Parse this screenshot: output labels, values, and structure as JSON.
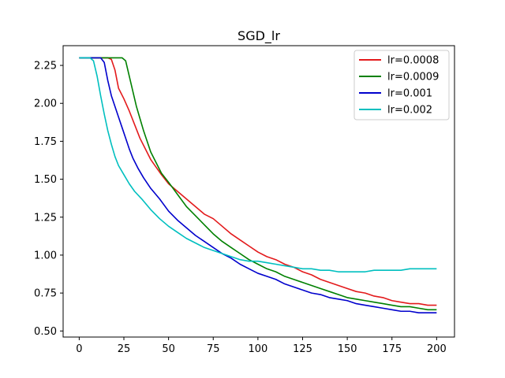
{
  "chart_data": {
    "type": "line",
    "title": "SGD_lr",
    "xlabel": "",
    "ylabel": "",
    "xlim": [
      -9,
      210
    ],
    "ylim": [
      0.46,
      2.38
    ],
    "xticks": [
      0,
      25,
      50,
      75,
      100,
      125,
      150,
      175,
      200
    ],
    "yticks": [
      0.5,
      0.75,
      1.0,
      1.25,
      1.5,
      1.75,
      2.0,
      2.25
    ],
    "ytick_labels": [
      "0.50",
      "0.75",
      "1.00",
      "1.25",
      "1.50",
      "1.75",
      "2.00",
      "2.25"
    ],
    "grid": false,
    "legend_position": "top-right",
    "series": [
      {
        "name": "lr=0.0008",
        "color": "#e31a1c",
        "points": [
          [
            0,
            2.3
          ],
          [
            10,
            2.3
          ],
          [
            16,
            2.3
          ],
          [
            18,
            2.29
          ],
          [
            20,
            2.22
          ],
          [
            22,
            2.1
          ],
          [
            25,
            2.03
          ],
          [
            28,
            1.95
          ],
          [
            31,
            1.86
          ],
          [
            34,
            1.77
          ],
          [
            37,
            1.7
          ],
          [
            40,
            1.63
          ],
          [
            43,
            1.58
          ],
          [
            46,
            1.53
          ],
          [
            50,
            1.47
          ],
          [
            55,
            1.42
          ],
          [
            60,
            1.37
          ],
          [
            65,
            1.32
          ],
          [
            70,
            1.27
          ],
          [
            75,
            1.24
          ],
          [
            80,
            1.19
          ],
          [
            85,
            1.14
          ],
          [
            90,
            1.1
          ],
          [
            95,
            1.06
          ],
          [
            100,
            1.02
          ],
          [
            105,
            0.99
          ],
          [
            110,
            0.97
          ],
          [
            115,
            0.94
          ],
          [
            120,
            0.92
          ],
          [
            125,
            0.89
          ],
          [
            130,
            0.87
          ],
          [
            135,
            0.84
          ],
          [
            140,
            0.82
          ],
          [
            145,
            0.8
          ],
          [
            150,
            0.78
          ],
          [
            155,
            0.76
          ],
          [
            160,
            0.75
          ],
          [
            165,
            0.73
          ],
          [
            170,
            0.72
          ],
          [
            175,
            0.7
          ],
          [
            180,
            0.69
          ],
          [
            185,
            0.68
          ],
          [
            190,
            0.68
          ],
          [
            195,
            0.67
          ],
          [
            200,
            0.67
          ]
        ]
      },
      {
        "name": "lr=0.0009",
        "color": "#008000",
        "points": [
          [
            0,
            2.3
          ],
          [
            10,
            2.3
          ],
          [
            20,
            2.3
          ],
          [
            24,
            2.3
          ],
          [
            26,
            2.28
          ],
          [
            28,
            2.18
          ],
          [
            30,
            2.08
          ],
          [
            32,
            1.98
          ],
          [
            34,
            1.9
          ],
          [
            36,
            1.82
          ],
          [
            38,
            1.75
          ],
          [
            40,
            1.68
          ],
          [
            43,
            1.61
          ],
          [
            46,
            1.54
          ],
          [
            50,
            1.48
          ],
          [
            55,
            1.4
          ],
          [
            60,
            1.32
          ],
          [
            65,
            1.26
          ],
          [
            70,
            1.2
          ],
          [
            75,
            1.14
          ],
          [
            80,
            1.09
          ],
          [
            85,
            1.05
          ],
          [
            90,
            1.01
          ],
          [
            95,
            0.97
          ],
          [
            100,
            0.94
          ],
          [
            105,
            0.91
          ],
          [
            110,
            0.89
          ],
          [
            115,
            0.86
          ],
          [
            120,
            0.84
          ],
          [
            125,
            0.82
          ],
          [
            130,
            0.8
          ],
          [
            135,
            0.78
          ],
          [
            140,
            0.76
          ],
          [
            145,
            0.74
          ],
          [
            150,
            0.72
          ],
          [
            155,
            0.71
          ],
          [
            160,
            0.7
          ],
          [
            165,
            0.69
          ],
          [
            170,
            0.68
          ],
          [
            175,
            0.67
          ],
          [
            180,
            0.66
          ],
          [
            185,
            0.66
          ],
          [
            190,
            0.65
          ],
          [
            195,
            0.64
          ],
          [
            200,
            0.64
          ]
        ]
      },
      {
        "name": "lr=0.001",
        "color": "#0000cc",
        "points": [
          [
            0,
            2.3
          ],
          [
            8,
            2.3
          ],
          [
            12,
            2.3
          ],
          [
            14,
            2.27
          ],
          [
            16,
            2.15
          ],
          [
            18,
            2.05
          ],
          [
            20,
            1.98
          ],
          [
            22,
            1.91
          ],
          [
            24,
            1.84
          ],
          [
            26,
            1.77
          ],
          [
            28,
            1.7
          ],
          [
            30,
            1.64
          ],
          [
            33,
            1.57
          ],
          [
            36,
            1.51
          ],
          [
            40,
            1.44
          ],
          [
            45,
            1.37
          ],
          [
            50,
            1.29
          ],
          [
            55,
            1.23
          ],
          [
            60,
            1.18
          ],
          [
            65,
            1.13
          ],
          [
            70,
            1.09
          ],
          [
            75,
            1.05
          ],
          [
            80,
            1.01
          ],
          [
            85,
            0.98
          ],
          [
            90,
            0.94
          ],
          [
            95,
            0.91
          ],
          [
            100,
            0.88
          ],
          [
            105,
            0.86
          ],
          [
            110,
            0.84
          ],
          [
            115,
            0.81
          ],
          [
            120,
            0.79
          ],
          [
            125,
            0.77
          ],
          [
            130,
            0.75
          ],
          [
            135,
            0.74
          ],
          [
            140,
            0.72
          ],
          [
            145,
            0.71
          ],
          [
            150,
            0.7
          ],
          [
            155,
            0.68
          ],
          [
            160,
            0.67
          ],
          [
            165,
            0.66
          ],
          [
            170,
            0.65
          ],
          [
            175,
            0.64
          ],
          [
            180,
            0.63
          ],
          [
            185,
            0.63
          ],
          [
            190,
            0.62
          ],
          [
            195,
            0.62
          ],
          [
            200,
            0.62
          ]
        ]
      },
      {
        "name": "lr=0.002",
        "color": "#00bfbf",
        "points": [
          [
            0,
            2.3
          ],
          [
            6,
            2.3
          ],
          [
            8,
            2.28
          ],
          [
            10,
            2.18
          ],
          [
            12,
            2.05
          ],
          [
            14,
            1.93
          ],
          [
            16,
            1.82
          ],
          [
            18,
            1.73
          ],
          [
            20,
            1.65
          ],
          [
            22,
            1.59
          ],
          [
            25,
            1.53
          ],
          [
            28,
            1.47
          ],
          [
            31,
            1.42
          ],
          [
            35,
            1.37
          ],
          [
            40,
            1.3
          ],
          [
            45,
            1.24
          ],
          [
            50,
            1.19
          ],
          [
            55,
            1.15
          ],
          [
            60,
            1.11
          ],
          [
            65,
            1.08
          ],
          [
            70,
            1.05
          ],
          [
            75,
            1.03
          ],
          [
            80,
            1.01
          ],
          [
            85,
            0.99
          ],
          [
            90,
            0.97
          ],
          [
            95,
            0.96
          ],
          [
            100,
            0.96
          ],
          [
            105,
            0.95
          ],
          [
            110,
            0.94
          ],
          [
            115,
            0.93
          ],
          [
            120,
            0.92
          ],
          [
            125,
            0.91
          ],
          [
            130,
            0.91
          ],
          [
            135,
            0.9
          ],
          [
            140,
            0.9
          ],
          [
            145,
            0.89
          ],
          [
            150,
            0.89
          ],
          [
            155,
            0.89
          ],
          [
            160,
            0.89
          ],
          [
            165,
            0.9
          ],
          [
            170,
            0.9
          ],
          [
            175,
            0.9
          ],
          [
            180,
            0.9
          ],
          [
            185,
            0.91
          ],
          [
            190,
            0.91
          ],
          [
            195,
            0.91
          ],
          [
            200,
            0.91
          ]
        ]
      }
    ]
  }
}
